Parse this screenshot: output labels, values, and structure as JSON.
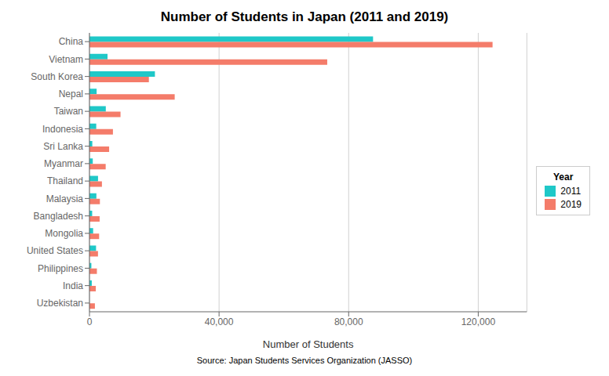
{
  "chart_data": {
    "type": "bar",
    "orientation": "horizontal",
    "title": "Number of Students in Japan (2011 and 2019)",
    "xlabel": "Number of Students",
    "legend_title": "Year",
    "annotations": [
      "Source: Japan Students Services Organization (JASSO)"
    ],
    "categories": [
      "China",
      "Vietnam",
      "South Korea",
      "Nepal",
      "Taiwan",
      "Indonesia",
      "Sri Lanka",
      "Myanmar",
      "Thailand",
      "Malaysia",
      "Bangladesh",
      "Mongolia",
      "United States",
      "Philippines",
      "India",
      "Uzbekistan"
    ],
    "series": [
      {
        "name": "2011",
        "color": "#1FC8C8",
        "values": [
          87533,
          5571,
          20202,
          2210,
          5040,
          2090,
          878,
          1024,
          2645,
          2134,
          836,
          1132,
          2031,
          589,
          716,
          0
        ]
      },
      {
        "name": "2019",
        "color": "#F47C6A",
        "values": [
          124421,
          73389,
          18338,
          26308,
          9584,
          7244,
          6071,
          5006,
          3847,
          3218,
          3135,
          2980,
          2630,
          2295,
          1955,
          1677
        ]
      }
    ],
    "xlim": [
      0,
      135000
    ],
    "xticks": [
      0,
      {
        "value": 40000,
        "label": "40,000"
      },
      {
        "value": 80000,
        "label": "80,000"
      },
      {
        "value": 120000,
        "label": "120,000"
      }
    ],
    "grid": true,
    "legend": "right"
  }
}
